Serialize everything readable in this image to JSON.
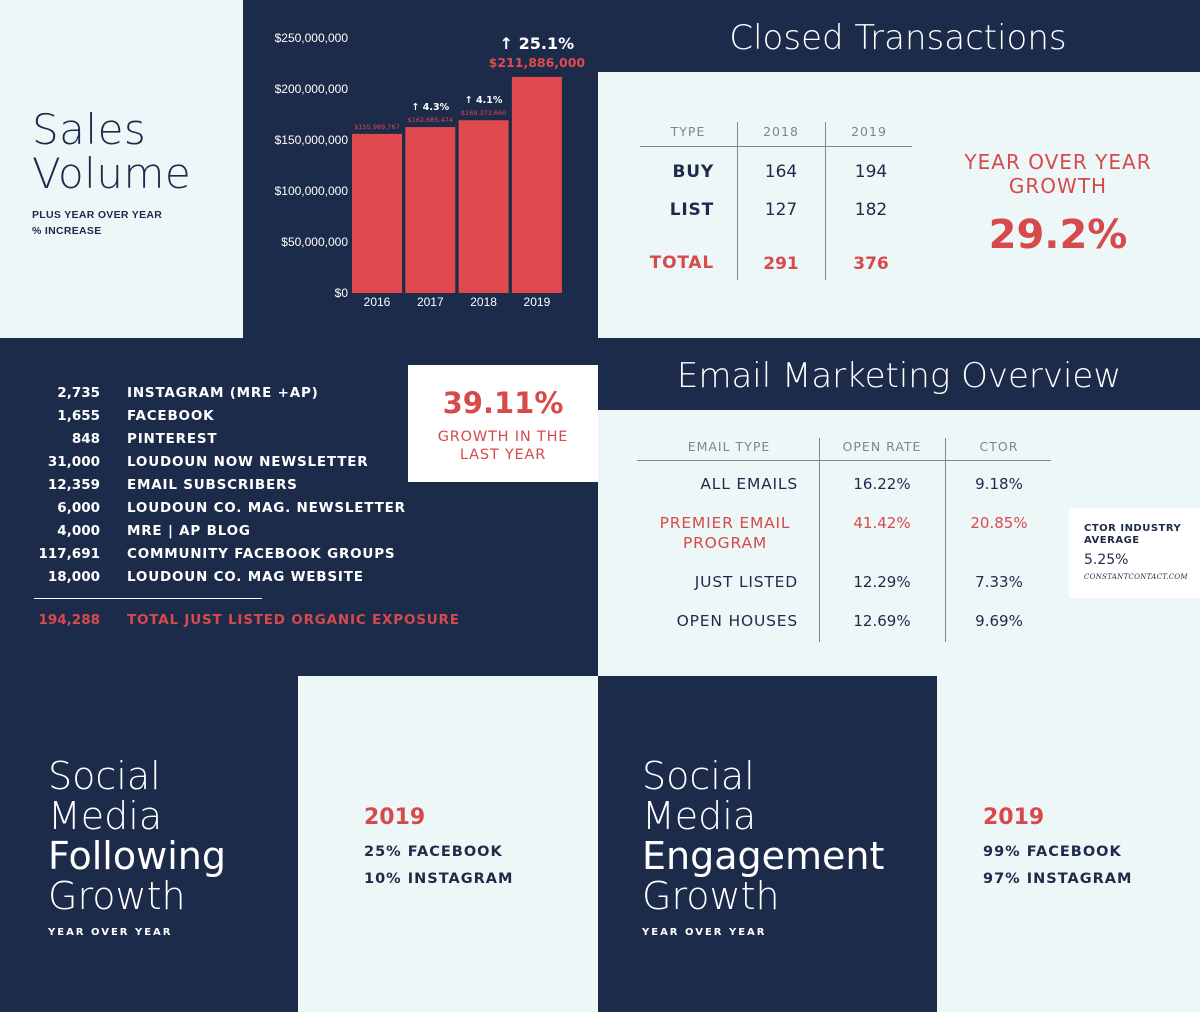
{
  "sales_volume": {
    "title_line1": "Sales",
    "title_line2": "Volume",
    "subtitle_line1": "PLUS YEAR OVER YEAR",
    "subtitle_line2": "% INCREASE"
  },
  "chart_data": {
    "type": "bar",
    "title": "",
    "xlabel": "",
    "ylabel": "",
    "categories": [
      "2016",
      "2017",
      "2018",
      "2019"
    ],
    "values": [
      155989767,
      162685474,
      169373660,
      211886000
    ],
    "value_labels": [
      "$155,989,767",
      "$162,685,474",
      "$169,373,660",
      "$211,886,000"
    ],
    "growth_labels": [
      "",
      "↑ 4.3%",
      "↑ 4.1%",
      "↑ 25.1%"
    ],
    "ylim": [
      0,
      250000000
    ],
    "y_ticks": [
      0,
      50000000,
      100000000,
      150000000,
      200000000,
      250000000
    ],
    "y_tick_labels": [
      "$0",
      "$50,000,000",
      "$100,000,000",
      "$150,000,000",
      "$200,000,000",
      "$250,000,000"
    ],
    "grid": false,
    "bar_color": "#e04a4e"
  },
  "closed_transactions": {
    "title": "Closed Transactions",
    "headers": [
      "TYPE",
      "2018",
      "2019"
    ],
    "rows": [
      {
        "type": "BUY",
        "y2018": "164",
        "y2019": "194"
      },
      {
        "type": "LIST",
        "y2018": "127",
        "y2019": "182"
      }
    ],
    "total": {
      "type": "TOTAL",
      "y2018": "291",
      "y2019": "376"
    },
    "growth_label_line1": "YEAR OVER YEAR",
    "growth_label_line2": "GROWTH",
    "growth_value": "29.2%"
  },
  "exposure": {
    "items": [
      {
        "num": "2,735",
        "label": "INSTAGRAM (MRE +AP)"
      },
      {
        "num": "1,655",
        "label": "FACEBOOK"
      },
      {
        "num": "848",
        "label": "PINTEREST"
      },
      {
        "num": "31,000",
        "label": "LOUDOUN NOW NEWSLETTER"
      },
      {
        "num": "12,359",
        "label": "EMAIL SUBSCRIBERS"
      },
      {
        "num": "6,000",
        "label": "LOUDOUN CO. MAG. NEWSLETTER"
      },
      {
        "num": "4,000",
        "label": "MRE | AP BLOG"
      },
      {
        "num": "117,691",
        "label": "COMMUNITY FACEBOOK GROUPS"
      },
      {
        "num": "18,000",
        "label": "LOUDOUN CO. MAG WEBSITE"
      }
    ],
    "total_num": "194,288",
    "total_label": "TOTAL JUST LISTED ORGANIC EXPOSURE",
    "growth_value": "39.11%",
    "growth_label_line1": "GROWTH IN THE",
    "growth_label_line2": "LAST YEAR"
  },
  "email_marketing": {
    "title": "Email Marketing Overview",
    "headers": [
      "EMAIL TYPE",
      "OPEN RATE",
      "CTOR"
    ],
    "rows": [
      {
        "type_line1": "ALL EMAILS",
        "type_line2": "",
        "open": "16.22%",
        "ctor": "9.18%"
      },
      {
        "type_line1": "PREMIER EMAIL",
        "type_line2": "PROGRAM",
        "open": "41.42%",
        "ctor": "20.85%"
      },
      {
        "type_line1": "JUST LISTED",
        "type_line2": "",
        "open": "12.29%",
        "ctor": "7.33%"
      },
      {
        "type_line1": "OPEN HOUSES",
        "type_line2": "",
        "open": "12.69%",
        "ctor": "9.69%"
      }
    ],
    "industry_label_line1": "CTOR INDUSTRY",
    "industry_label_line2": "AVERAGE",
    "industry_value": "5.25%",
    "industry_source": "CONSTANTCONTACT.COM"
  },
  "social_following": {
    "line1": "Social",
    "line2": "Media",
    "line3": "Following",
    "line4": "Growth",
    "subtitle": "YEAR OVER YEAR",
    "year": "2019",
    "stat1": "25% FACEBOOK",
    "stat2": "10% INSTAGRAM"
  },
  "social_engagement": {
    "line1": "Social",
    "line2": "Media",
    "line3": "Engagement",
    "line4": "Growth",
    "subtitle": "YEAR OVER YEAR",
    "year": "2019",
    "stat1": "99% FACEBOOK",
    "stat2": "97% INSTAGRAM"
  }
}
